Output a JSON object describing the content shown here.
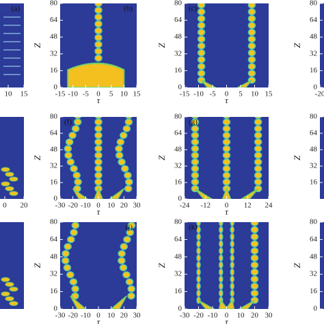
{
  "chart_data": [
    {
      "type": "heatmap",
      "label": "(a)",
      "xlim": [
        -15,
        15
      ],
      "xticks": [
        10,
        15
      ],
      "ylim": [
        0,
        80
      ]
    },
    {
      "type": "heatmap",
      "label": "(b)",
      "xlabel": "τ",
      "ylabel": "Z",
      "xlim": [
        -15,
        15
      ],
      "xticks": [
        -15,
        -10,
        -5,
        0,
        5,
        10,
        15
      ],
      "ylim": [
        0,
        80
      ],
      "yticks": [
        0,
        16,
        32,
        48,
        64,
        80
      ]
    },
    {
      "type": "heatmap",
      "label": "(c)",
      "xlabel": "τ",
      "ylabel": "Z",
      "xlim": [
        -15,
        15
      ],
      "xticks": [
        -15,
        -10,
        -5,
        0,
        5,
        10,
        15
      ],
      "ylim": [
        0,
        80
      ],
      "yticks": [
        0,
        16,
        32,
        48,
        64,
        80
      ]
    },
    {
      "type": "heatmap",
      "ylabel": "Z",
      "xlim": [
        -20,
        20
      ],
      "xticks": [
        -20
      ],
      "ylim": [
        0,
        80
      ],
      "yticks": [
        0,
        16,
        32,
        48,
        64,
        80
      ]
    },
    {
      "type": "heatmap",
      "xlim": [
        -40,
        20
      ],
      "xticks": [
        0,
        20
      ],
      "ylim": [
        0,
        80
      ]
    },
    {
      "type": "heatmap",
      "label": "(f)",
      "xlabel": "τ",
      "ylabel": "Z",
      "xlim": [
        -30,
        30
      ],
      "xticks": [
        -30,
        -20,
        -10,
        0,
        10,
        20,
        30
      ],
      "ylim": [
        0,
        80
      ],
      "yticks": [
        0,
        16,
        32,
        48,
        64,
        80
      ]
    },
    {
      "type": "heatmap",
      "label": "(g)",
      "xlabel": "τ",
      "ylabel": "Z",
      "xlim": [
        -24,
        24
      ],
      "xticks": [
        -24,
        -12,
        0,
        12,
        24
      ],
      "ylim": [
        0,
        80
      ],
      "yticks": [
        0,
        16,
        32,
        48,
        64,
        80
      ]
    },
    {
      "type": "heatmap",
      "ylabel": "Z",
      "xlim": [
        -20,
        20
      ],
      "ylim": [
        0,
        80
      ],
      "yticks": [
        16,
        32,
        48,
        64,
        80
      ]
    },
    {
      "type": "heatmap",
      "xlim": [
        -30,
        30
      ],
      "ylim": [
        0,
        80
      ]
    },
    {
      "type": "heatmap",
      "label": "(j)",
      "xlabel": "τ",
      "ylabel": "Z",
      "xlim": [
        -30,
        30
      ],
      "xticks": [
        -30,
        -20,
        -10,
        0,
        10,
        20,
        30
      ],
      "ylim": [
        0,
        80
      ],
      "yticks": [
        0,
        16,
        32,
        48,
        64,
        80
      ]
    },
    {
      "type": "heatmap",
      "label": "(k)",
      "xlabel": "τ",
      "ylabel": "Z",
      "xlim": [
        -30,
        30
      ],
      "xticks": [
        -30,
        -20,
        -10,
        0,
        10,
        20,
        30
      ],
      "ylim": [
        0,
        80
      ],
      "yticks": [
        0,
        16,
        32,
        48,
        64,
        80
      ]
    },
    {
      "type": "heatmap",
      "ylabel": "Z",
      "xlim": [
        -20,
        20
      ],
      "ylim": [
        0,
        80
      ],
      "yticks": [
        0,
        16,
        32,
        48,
        64,
        80
      ]
    }
  ]
}
